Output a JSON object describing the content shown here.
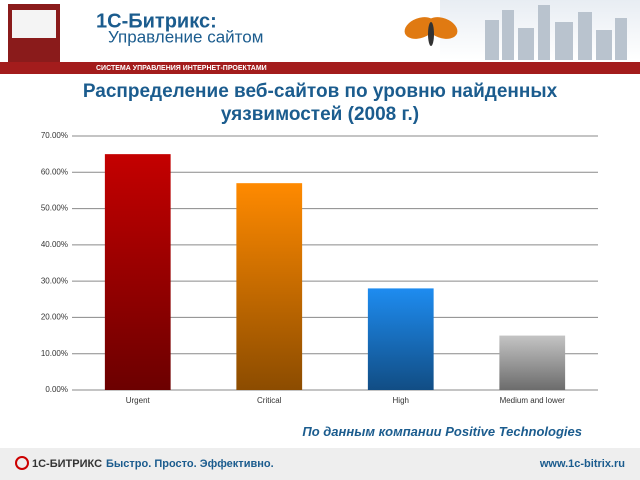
{
  "header": {
    "brand": "1С-Битрикс:",
    "product": "Управление сайтом",
    "tagline": "СИСТЕМА УПРАВЛЕНИЯ ИНТЕРНЕТ-ПРОЕКТАМИ"
  },
  "footer": {
    "logo": "1С-БИТРИКС",
    "slogan": "Быстро. Просто. Эффективно.",
    "url": "www.1c-bitrix.ru"
  },
  "chart_data": {
    "type": "bar",
    "title": "Распределение веб-сайтов по уровню найденных уязвимостей (2008 г.)",
    "source": "По данным компании Positive Technologies",
    "categories": [
      "Urgent",
      "Critical",
      "High",
      "Medium and lower"
    ],
    "values": [
      65,
      57,
      28,
      15
    ],
    "colors": [
      "#c40000",
      "#ff8a00",
      "#1e8cf0",
      "#c4c4c4"
    ],
    "ylim": [
      0,
      70
    ],
    "yticks": [
      {
        "value": 0,
        "label": "0.00%"
      },
      {
        "value": 10,
        "label": "10.00%"
      },
      {
        "value": 20,
        "label": "20.00%"
      },
      {
        "value": 30,
        "label": "30.00%"
      },
      {
        "value": 40,
        "label": "40.00%"
      },
      {
        "value": 50,
        "label": "50.00%"
      },
      {
        "value": 60,
        "label": "60.00%"
      },
      {
        "value": 70,
        "label": "70.00%"
      }
    ],
    "grid": true
  }
}
